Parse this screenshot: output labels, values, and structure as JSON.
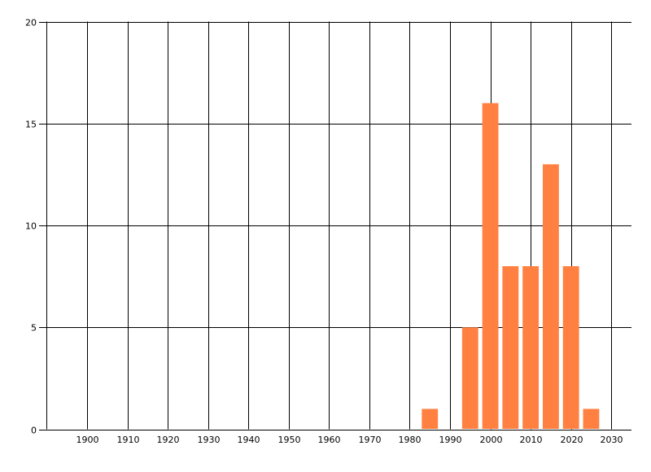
{
  "chart_data": {
    "type": "bar",
    "title": "",
    "xlabel": "",
    "ylabel": "",
    "x": [
      1985,
      1995,
      2000,
      2005,
      2010,
      2015,
      2020,
      2025
    ],
    "values": [
      1,
      5,
      16,
      8,
      8,
      13,
      8,
      1
    ],
    "bar_width_years": 4,
    "xlim": [
      1890,
      2035
    ],
    "ylim": [
      0,
      20
    ],
    "xticks": [
      1900,
      1910,
      1920,
      1930,
      1940,
      1950,
      1960,
      1970,
      1980,
      1990,
      2000,
      2010,
      2020,
      2030
    ],
    "yticks": [
      0,
      5,
      10,
      15,
      20
    ],
    "grid": true,
    "legend": "none",
    "bar_color": "#FF8040",
    "grid_color": "#000000"
  }
}
